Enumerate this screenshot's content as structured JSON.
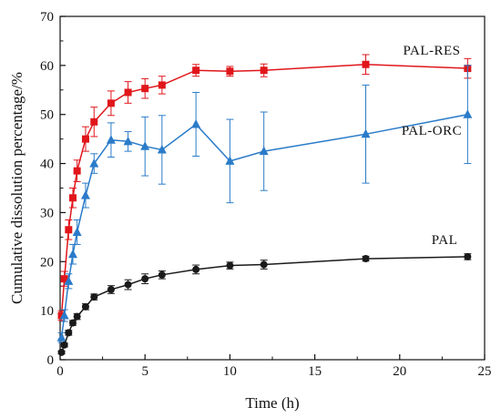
{
  "chart_data": {
    "type": "line",
    "title": "",
    "xlabel": "Time (h)",
    "ylabel": "Cumulative dissolution percentage/%",
    "xlim": [
      0,
      25
    ],
    "ylim": [
      0,
      70
    ],
    "xticks": [
      0,
      5,
      10,
      15,
      20,
      25
    ],
    "yticks": [
      0,
      10,
      20,
      30,
      40,
      50,
      60,
      70
    ],
    "grid": false,
    "legend": "inline labels",
    "series": [
      {
        "name": "PAL-RES",
        "color": "#e0161b",
        "marker": "square",
        "x": [
          0.083,
          0.25,
          0.5,
          0.75,
          1,
          1.5,
          2,
          3,
          4,
          5,
          6,
          8,
          10,
          12,
          18,
          24
        ],
        "y": [
          9.0,
          16.5,
          26.5,
          33.0,
          38.5,
          45.0,
          48.5,
          52.3,
          54.5,
          55.3,
          56.0,
          59.0,
          58.8,
          59.0,
          60.2,
          59.4
        ],
        "err": [
          1.0,
          1.5,
          2.0,
          2.0,
          2.2,
          2.5,
          3.0,
          2.5,
          2.2,
          2.0,
          1.8,
          1.2,
          1.0,
          1.3,
          2.0,
          2.0
        ]
      },
      {
        "name": "PAL-ORC",
        "color": "#2a7bc9",
        "marker": "triangle",
        "x": [
          0.083,
          0.25,
          0.5,
          0.75,
          1,
          1.5,
          2,
          3,
          4,
          5,
          6,
          8,
          10,
          12,
          18,
          24
        ],
        "y": [
          4.5,
          9.0,
          16.0,
          21.5,
          26.0,
          33.5,
          40.0,
          44.8,
          44.5,
          43.5,
          42.8,
          48.0,
          40.5,
          42.5,
          46.0,
          50.0
        ],
        "err": [
          1.0,
          1.2,
          1.5,
          2.0,
          2.5,
          2.5,
          2.0,
          3.5,
          2.0,
          6.0,
          7.0,
          6.5,
          8.5,
          8.0,
          10.0,
          10.0
        ]
      },
      {
        "name": "PAL",
        "color": "#1a1a1a",
        "marker": "circle",
        "x": [
          0.083,
          0.25,
          0.5,
          0.75,
          1,
          1.5,
          2,
          3,
          4,
          5,
          6,
          8,
          10,
          12,
          18,
          24
        ],
        "y": [
          1.5,
          3.0,
          5.5,
          7.5,
          8.8,
          10.8,
          12.8,
          14.3,
          15.3,
          16.5,
          17.3,
          18.4,
          19.2,
          19.4,
          20.6,
          21.0
        ],
        "err": [
          0.3,
          0.4,
          0.5,
          0.5,
          0.6,
          0.6,
          0.6,
          0.8,
          1.0,
          1.0,
          0.8,
          0.9,
          0.7,
          0.9,
          0.5,
          0.6
        ]
      }
    ]
  }
}
